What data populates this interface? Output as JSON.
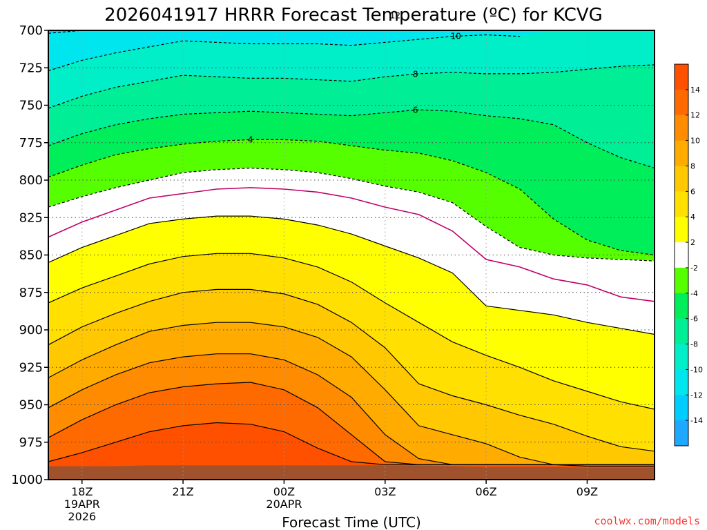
{
  "chart_data": {
    "type": "heatmap",
    "title": "2026041917 HRRR Forecast Temperature (ºC) for KCVG",
    "xlabel": "Forecast Time (UTC)",
    "ylabel": "",
    "x_range_hours": [
      -1,
      17
    ],
    "y_range_hpa": [
      700,
      1000
    ],
    "y_ticks": [
      "700",
      "725",
      "750",
      "775",
      "800",
      "825",
      "850",
      "875",
      "900",
      "925",
      "950",
      "975",
      "1000"
    ],
    "x_ticks": [
      {
        "hour": 0,
        "lines": [
          "18Z",
          "19APR",
          "2026"
        ]
      },
      {
        "hour": 3,
        "lines": [
          "21Z"
        ]
      },
      {
        "hour": 6,
        "lines": [
          "00Z",
          "20APR"
        ]
      },
      {
        "hour": 9,
        "lines": [
          "03Z"
        ]
      },
      {
        "hour": 12,
        "lines": [
          "06Z"
        ]
      },
      {
        "hour": 15,
        "lines": [
          "09Z"
        ]
      }
    ],
    "grid": true,
    "legend_position": "right",
    "colorbar": {
      "levels": [
        -16,
        -14,
        -12,
        -10,
        -8,
        -6,
        -4,
        -2,
        2,
        4,
        6,
        8,
        10,
        12,
        14,
        16
      ],
      "labels": [
        "-14",
        "-12",
        "-10",
        "-8",
        "-6",
        "-4",
        "-2",
        "2",
        "4",
        "6",
        "8",
        "10",
        "12",
        "14"
      ],
      "colors": [
        "#1ea8ff",
        "#00cdff",
        "#00e6ee",
        "#00eec8",
        "#00ee96",
        "#00ee5a",
        "#55ff00",
        "#ffffff",
        "#ffff00",
        "#ffe000",
        "#ffc800",
        "#ffab00",
        "#ff8c00",
        "#ff6a00",
        "#ff5000"
      ]
    },
    "hours": [
      -1,
      0,
      1,
      2,
      3,
      4,
      5,
      6,
      7,
      8,
      9,
      10,
      11,
      12,
      13,
      14,
      15,
      16,
      17
    ],
    "isotherms": [
      {
        "value": -12,
        "label": "12",
        "pressure_hpa": [
          702,
          699,
          695,
          691,
          688,
          689,
          690,
          692,
          693,
          694,
          691,
          688,
          685,
          682,
          680,
          678,
          676,
          674,
          672
        ]
      },
      {
        "value": -10,
        "label": "10",
        "pressure_hpa": [
          727,
          720,
          715,
          711,
          707,
          708,
          709,
          709,
          709,
          710,
          708,
          706,
          704,
          703,
          704,
          697,
          688,
          682,
          678
        ]
      },
      {
        "value": -8,
        "label": "8",
        "pressure_hpa": [
          752,
          744,
          738,
          734,
          730,
          731,
          732,
          732,
          733,
          734,
          731,
          729,
          728,
          729,
          729,
          728,
          726,
          724,
          723
        ]
      },
      {
        "value": -6,
        "label": "6",
        "pressure_hpa": [
          777,
          769,
          763,
          759,
          756,
          755,
          754,
          755,
          756,
          757,
          755,
          753,
          754,
          757,
          759,
          763,
          775,
          785,
          792
        ]
      },
      {
        "value": -4,
        "label": "4",
        "pressure_hpa": [
          798,
          790,
          783,
          779,
          776,
          774,
          773,
          773,
          774,
          777,
          780,
          782,
          787,
          795,
          806,
          826,
          840,
          847,
          850
        ]
      },
      {
        "value": -2,
        "label": "",
        "pressure_hpa": [
          818,
          811,
          805,
          800,
          795,
          793,
          792,
          793,
          795,
          799,
          804,
          808,
          815,
          831,
          845,
          850,
          852,
          853,
          854
        ]
      },
      {
        "value": 0,
        "label": "",
        "pressure_hpa": [
          838,
          828,
          820,
          812,
          809,
          806,
          805,
          806,
          808,
          812,
          818,
          823,
          834,
          853,
          858,
          866,
          870,
          878,
          881
        ]
      },
      {
        "value": 2,
        "label": "",
        "pressure_hpa": [
          855,
          845,
          837,
          829,
          826,
          824,
          824,
          826,
          830,
          836,
          844,
          852,
          862,
          884,
          887,
          890,
          895,
          899,
          903
        ]
      },
      {
        "value": 4,
        "label": "",
        "pressure_hpa": [
          882,
          872,
          864,
          856,
          851,
          849,
          849,
          852,
          858,
          868,
          882,
          895,
          908,
          917,
          925,
          934,
          941,
          948,
          953
        ]
      },
      {
        "value": 6,
        "label": "",
        "pressure_hpa": [
          910,
          898,
          889,
          881,
          875,
          873,
          873,
          876,
          883,
          895,
          912,
          936,
          944,
          950,
          957,
          963,
          971,
          978,
          981
        ]
      },
      {
        "value": 8,
        "label": "",
        "pressure_hpa": [
          932,
          920,
          910,
          901,
          897,
          895,
          895,
          898,
          905,
          918,
          940,
          964,
          970,
          976,
          985,
          990,
          991,
          991,
          991
        ]
      },
      {
        "value": 10,
        "label": "",
        "pressure_hpa": [
          952,
          940,
          930,
          922,
          918,
          916,
          916,
          920,
          930,
          945,
          970,
          986,
          990,
          990,
          990,
          990,
          990,
          990,
          990
        ]
      },
      {
        "value": 12,
        "label": "",
        "pressure_hpa": [
          972,
          960,
          950,
          942,
          938,
          936,
          935,
          940,
          952,
          970,
          988,
          990,
          990,
          990,
          990,
          990,
          990,
          990,
          990
        ]
      },
      {
        "value": 14,
        "label": "",
        "pressure_hpa": [
          988,
          982,
          975,
          968,
          964,
          962,
          963,
          968,
          979,
          988,
          990,
          990,
          990,
          990,
          990,
          990,
          990,
          990,
          990
        ]
      }
    ]
  },
  "credit": "coolwx.com/models"
}
